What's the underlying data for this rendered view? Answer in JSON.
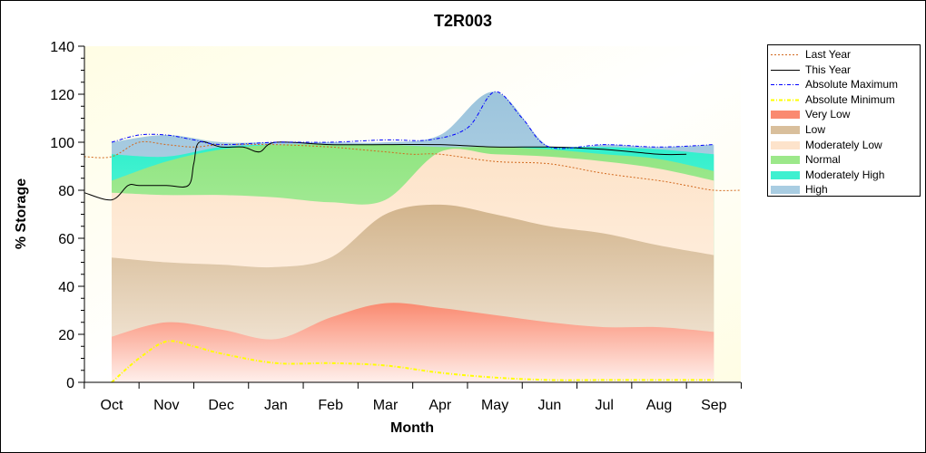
{
  "chart_data": {
    "type": "area",
    "title": "T2R003",
    "xlabel": "Month",
    "ylabel": "% Storage",
    "ylim": [
      0,
      140
    ],
    "yticks": [
      0,
      20,
      40,
      60,
      80,
      100,
      120,
      140
    ],
    "months": [
      "Oct",
      "Nov",
      "Dec",
      "Jan",
      "Feb",
      "Mar",
      "Apr",
      "May",
      "Jun",
      "Jul",
      "Aug",
      "Sep"
    ],
    "grid": false,
    "legend_position": "right",
    "x_axis_note": "month index; 0 = October 1st, 12 = end of September",
    "bands": {
      "x": [
        0,
        1,
        2,
        3,
        4,
        5,
        6,
        7,
        8,
        9,
        10,
        11
      ],
      "very_low_top": [
        19,
        25,
        22,
        18,
        27,
        33,
        31,
        28,
        25,
        23,
        23,
        21
      ],
      "low_top": [
        52,
        50,
        49,
        48,
        52,
        70,
        74,
        70,
        65,
        62,
        57,
        53
      ],
      "moderately_low_top": [
        79,
        78,
        78,
        77,
        75,
        76,
        96,
        95,
        94,
        92,
        89,
        84
      ],
      "normal_top": [
        84,
        92,
        97,
        99,
        99,
        99,
        98,
        98,
        97,
        95,
        93,
        88
      ],
      "moderately_high_top": [
        95,
        94,
        98,
        99,
        99,
        99,
        98,
        98,
        98,
        98,
        97,
        95
      ],
      "high_top": [
        100,
        103,
        100,
        100,
        100,
        100,
        103,
        121,
        98,
        99,
        98,
        99
      ]
    },
    "series": [
      {
        "name": "Last Year",
        "color": "#d2691e",
        "style": "dotted",
        "x": [
          -0.5,
          0,
          0.5,
          1,
          1.5,
          2,
          3,
          4,
          4.5,
          5,
          5.5,
          6,
          7,
          8,
          9,
          10,
          10.5,
          11,
          11.5
        ],
        "y": [
          94,
          94,
          100,
          99,
          98,
          99,
          99,
          98,
          97,
          96,
          95,
          95,
          92,
          91,
          87,
          84,
          82,
          80,
          80
        ]
      },
      {
        "name": "This Year",
        "color": "#000000",
        "style": "solid",
        "x": [
          -0.5,
          0,
          0.3,
          0.5,
          1,
          1.4,
          1.5,
          1.6,
          2,
          2.4,
          2.7,
          3,
          4,
          5,
          6,
          7,
          8,
          9,
          10,
          10.5
        ],
        "y": [
          79,
          76,
          82,
          82,
          82,
          82,
          91,
          100,
          98,
          98,
          96,
          100,
          99,
          99,
          99,
          98,
          98,
          97,
          95,
          95
        ]
      },
      {
        "name": "Absolute Maximum",
        "color": "#0000ff",
        "style": "dashdot",
        "x": [
          0,
          0.5,
          1,
          1.5,
          2,
          3,
          4,
          5,
          5.8,
          6.5,
          7,
          7.5,
          8,
          9,
          10,
          11
        ],
        "y": [
          100,
          103,
          103,
          101,
          99,
          100,
          100,
          101,
          101,
          106,
          121,
          110,
          98,
          99,
          98,
          99
        ]
      },
      {
        "name": "Absolute Minimum",
        "color": "#ffff00",
        "style": "dashdot",
        "x": [
          0,
          0.5,
          1,
          1.5,
          2,
          3,
          4,
          5,
          6,
          7,
          8,
          9,
          10,
          11
        ],
        "y": [
          0,
          10,
          17,
          15,
          12,
          8,
          8,
          7,
          4,
          2,
          1,
          1,
          1,
          1
        ]
      }
    ],
    "legend": [
      {
        "label": "Last Year",
        "kind": "line",
        "color": "#d2691e",
        "dash": "2,2"
      },
      {
        "label": "This Year",
        "kind": "line",
        "color": "#000000",
        "dash": ""
      },
      {
        "label": "Absolute Maximum",
        "kind": "line",
        "color": "#0000ff",
        "dash": "4,2,1,2"
      },
      {
        "label": "Absolute Minimum",
        "kind": "line",
        "color": "#ffff00",
        "dash": "4,2,1,2"
      },
      {
        "label": "Very Low",
        "kind": "fill",
        "color": "#fa8a70"
      },
      {
        "label": "Low",
        "kind": "fill",
        "color": "#d9bf9c"
      },
      {
        "label": "Moderately Low",
        "kind": "fill",
        "color": "#fde3cb"
      },
      {
        "label": "Normal",
        "kind": "fill",
        "color": "#9ce88a"
      },
      {
        "label": "Moderately High",
        "kind": "fill",
        "color": "#3ff0d0"
      },
      {
        "label": "High",
        "kind": "fill",
        "color": "#a9cde2"
      }
    ],
    "colors": {
      "plot_background": "#fffde4",
      "very_low": "#fa8a70",
      "low": "#d9bf9c",
      "moderately_low": "#fde3cb",
      "normal": "#9ce88a",
      "moderately_high": "#3ff0d0",
      "high": "#a9cde2"
    }
  }
}
